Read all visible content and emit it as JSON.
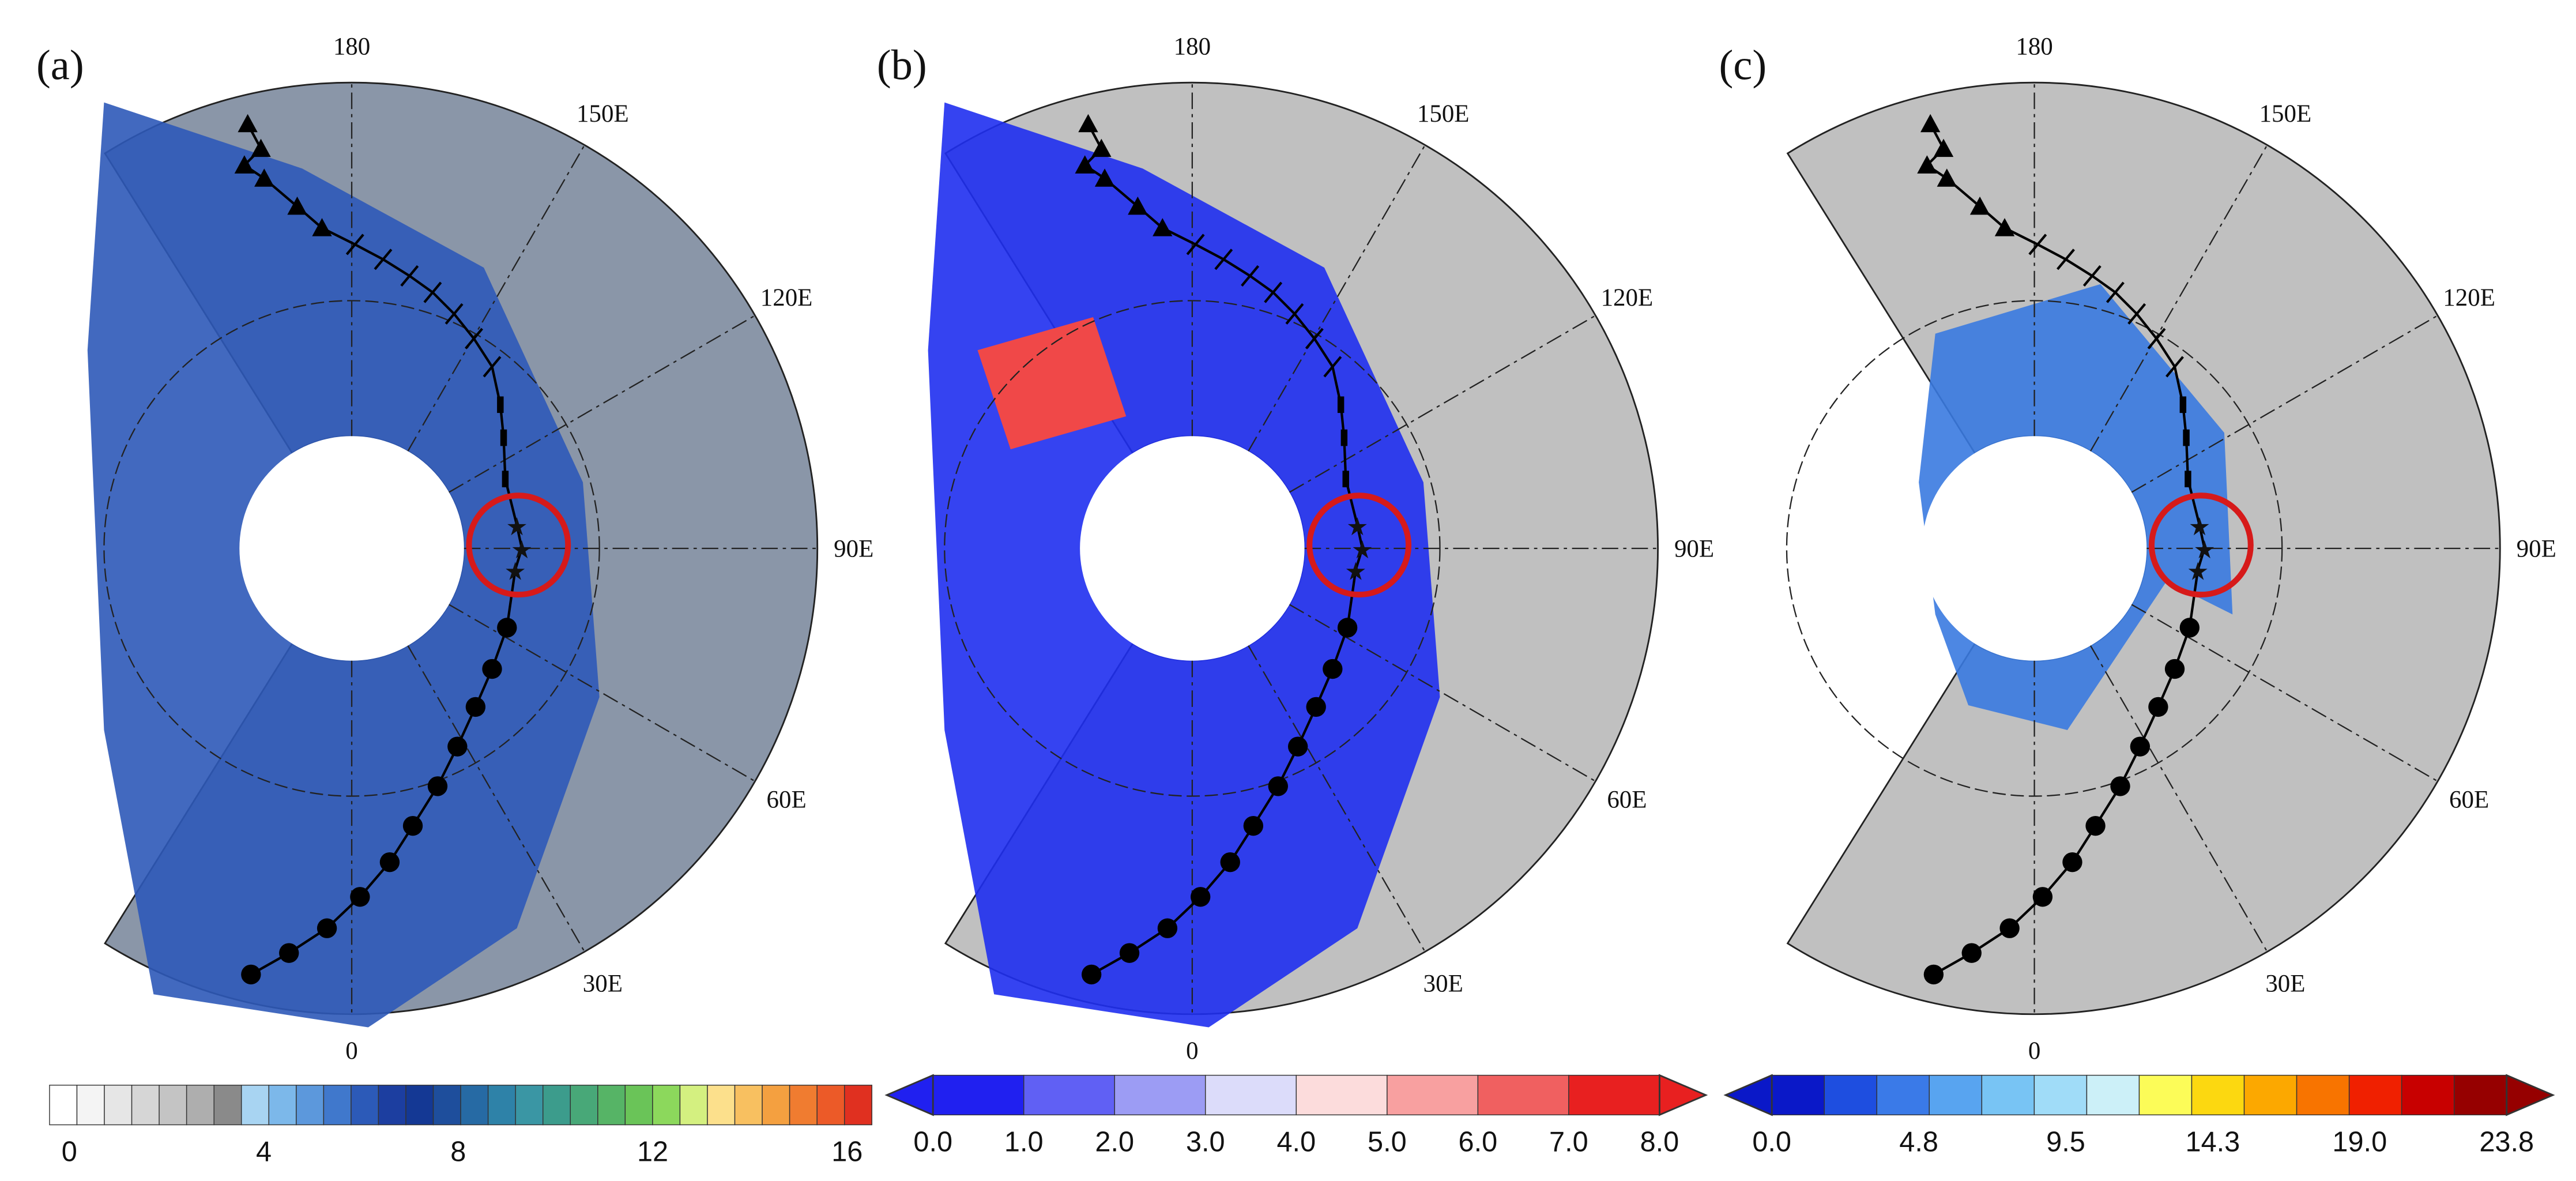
{
  "panels": [
    {
      "label": "(a)",
      "longitudes": [
        "180",
        "150E",
        "120E",
        "90E",
        "60E",
        "30E",
        "0"
      ],
      "colorbar": [
        "0",
        "4",
        "8",
        "12",
        "16"
      ]
    },
    {
      "label": "(b)",
      "longitudes": [
        "180",
        "150E",
        "120E",
        "90E",
        "60E",
        "30E",
        "0"
      ],
      "colorbar": [
        "0.0",
        "1.0",
        "2.0",
        "3.0",
        "4.0",
        "5.0",
        "6.0",
        "7.0",
        "8.0"
      ]
    },
    {
      "label": "(c)",
      "longitudes": [
        "180",
        "150E",
        "120E",
        "90E",
        "60E",
        "30E",
        "0"
      ],
      "colorbar": [
        "0.0",
        "4.8",
        "9.5",
        "14.3",
        "19.0",
        "23.8"
      ]
    }
  ]
}
